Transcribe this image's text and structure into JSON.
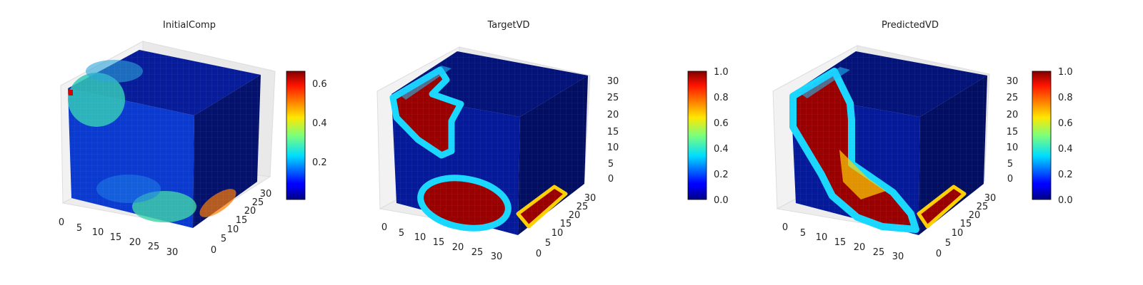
{
  "chart_data": [
    {
      "type": "heatmap",
      "title": "InitialComp",
      "x_ticks": [
        "0",
        "5",
        "10",
        "15",
        "20",
        "25",
        "30"
      ],
      "y_ticks": [
        "0",
        "5",
        "10",
        "15",
        "20",
        "25",
        "30"
      ],
      "z_ticks": [],
      "xlim": [
        0,
        32
      ],
      "ylim": [
        0,
        32
      ],
      "zlim": [
        0,
        32
      ],
      "colorbar": {
        "min": 0.02,
        "max": 0.66,
        "ticks": [
          "0.2",
          "0.4",
          "0.6"
        ],
        "colormap": "jet"
      }
    },
    {
      "type": "heatmap",
      "title": "TargetVD",
      "x_ticks": [
        "0",
        "5",
        "10",
        "15",
        "20",
        "25",
        "30"
      ],
      "y_ticks": [
        "0",
        "5",
        "10",
        "15",
        "20",
        "25",
        "30"
      ],
      "z_ticks": [
        "0",
        "5",
        "10",
        "15",
        "20",
        "25",
        "30"
      ],
      "xlim": [
        0,
        32
      ],
      "ylim": [
        0,
        32
      ],
      "zlim": [
        0,
        32
      ],
      "colorbar": {
        "min": 0.0,
        "max": 1.0,
        "ticks": [
          "0.0",
          "0.2",
          "0.4",
          "0.6",
          "0.8",
          "1.0"
        ],
        "colormap": "jet"
      }
    },
    {
      "type": "heatmap",
      "title": "PredictedVD",
      "x_ticks": [
        "0",
        "5",
        "10",
        "15",
        "20",
        "25",
        "30"
      ],
      "y_ticks": [
        "0",
        "5",
        "10",
        "15",
        "20",
        "25",
        "30"
      ],
      "z_ticks": [
        "0",
        "5",
        "10",
        "15",
        "20",
        "25",
        "30"
      ],
      "xlim": [
        0,
        32
      ],
      "ylim": [
        0,
        32
      ],
      "zlim": [
        0,
        32
      ],
      "colorbar": {
        "min": 0.0,
        "max": 1.0,
        "ticks": [
          "0.0",
          "0.2",
          "0.4",
          "0.6",
          "0.8",
          "1.0"
        ],
        "colormap": "jet"
      }
    }
  ]
}
